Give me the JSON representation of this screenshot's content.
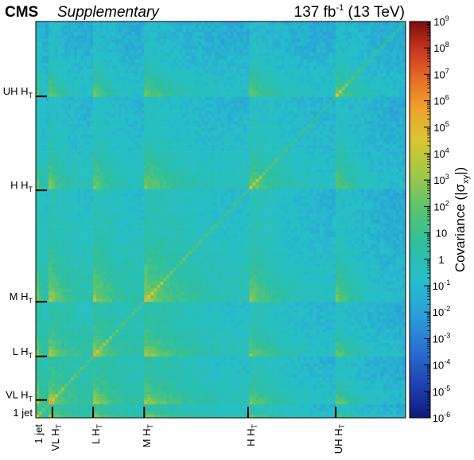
{
  "header": {
    "experiment": "CMS",
    "tag": "Supplementary",
    "lumi_value": "137 fb",
    "lumi_exp": "-1",
    "energy": "(13 TeV)"
  },
  "chart_data": {
    "type": "heatmap",
    "title": "",
    "matrix_description": "covariance matrix of search bins; colour = |sigma_xy| on log scale",
    "colorbar": {
      "label_main": "Covariance (|σ",
      "label_sub": "xy",
      "label_end": "|)",
      "scale": "log",
      "range": [
        1e-06,
        1000000000.0
      ],
      "ticks": [
        {
          "base": "10",
          "exp": "9"
        },
        {
          "base": "10",
          "exp": "8"
        },
        {
          "base": "10",
          "exp": "7"
        },
        {
          "base": "10",
          "exp": "6"
        },
        {
          "base": "10",
          "exp": "5"
        },
        {
          "base": "10",
          "exp": "4"
        },
        {
          "base": "10",
          "exp": "3"
        },
        {
          "base": "10",
          "exp": "2"
        },
        {
          "base": "10",
          "exp": ""
        },
        {
          "base": "1",
          "exp": ""
        },
        {
          "base": "10",
          "exp": "-1"
        },
        {
          "base": "10",
          "exp": "-2"
        },
        {
          "base": "10",
          "exp": "-3"
        },
        {
          "base": "10",
          "exp": "-4"
        },
        {
          "base": "10",
          "exp": "-5"
        },
        {
          "base": "10",
          "exp": "-6"
        }
      ]
    },
    "region_boundaries": [
      0.0,
      0.0365,
      0.155,
      0.293,
      0.574,
      0.811,
      1.0
    ],
    "region_labels": [
      {
        "main": "1 jet",
        "sub": ""
      },
      {
        "main": "VL H",
        "sub": "T"
      },
      {
        "main": "L H",
        "sub": "T"
      },
      {
        "main": "M H",
        "sub": "T"
      },
      {
        "main": "H H",
        "sub": "T"
      },
      {
        "main": "UH H",
        "sub": "T"
      }
    ],
    "x_label_positions": [
      0.0,
      0.045,
      0.155,
      0.293,
      0.574,
      0.811
    ],
    "y_label_positions": [
      0.0,
      0.045,
      0.155,
      0.293,
      0.574,
      0.811
    ],
    "grid": false
  }
}
